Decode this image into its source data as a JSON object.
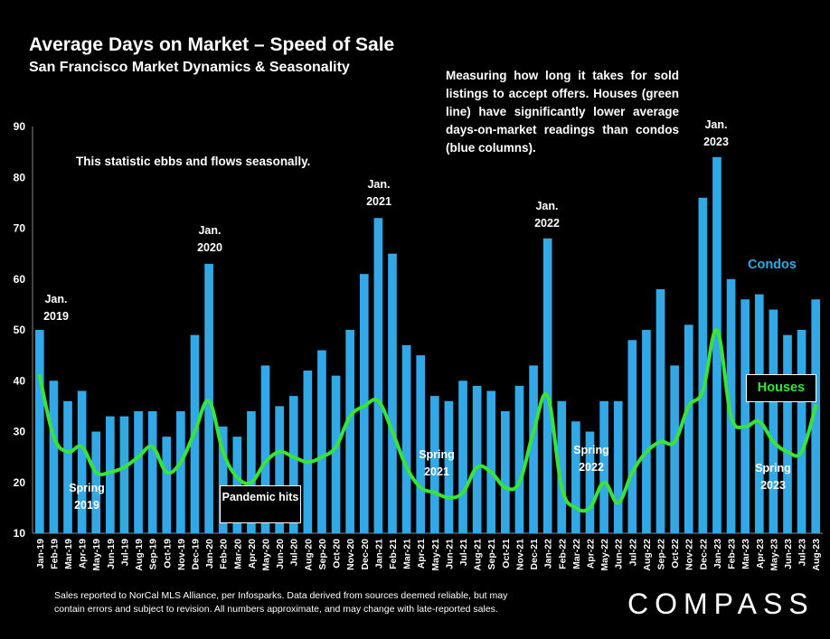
{
  "header": {
    "title": "Average Days on Market – Speed of Sale",
    "subtitle": "San Francisco Market Dynamics & Seasonality"
  },
  "notes": {
    "right": "Measuring how long it takes for sold listings to accept offers. Houses (green line) have significantly lower average days-on-market readings than condos (blue columns).",
    "left": "This statistic ebbs and flows seasonally.",
    "pandemic": "Pandemic hits",
    "footer_line1": "Sales reported to NorCal MLS Alliance, per Infosparks. Data derived from sources deemed reliable, but may",
    "footer_line2": "contain errors and subject to revision. All numbers approximate, and may change with late-reported sales."
  },
  "annotations": {
    "jan2019": "Jan.\n2019",
    "jan2020": "Jan.\n2020",
    "jan2021": "Jan.\n2021",
    "jan2022": "Jan.\n2022",
    "jan2023": "Jan.\n2023",
    "spring2019": "Spring\n2019",
    "spring2021": "Spring\n2021",
    "spring2022": "Spring\n2022",
    "spring2023": "Spring\n2023"
  },
  "legend": {
    "condos": "Condos",
    "houses": "Houses"
  },
  "logo": "COMPASS",
  "colors": {
    "background": "#000000",
    "condos": "#33a8e6",
    "houses": "#39e339",
    "text": "#ffffff"
  },
  "chart_data": {
    "type": "bar",
    "title": "Average Days on Market – Speed of Sale",
    "ylim": [
      10,
      90
    ],
    "yticks": [
      10,
      20,
      30,
      40,
      50,
      60,
      70,
      80,
      90
    ],
    "grid": false,
    "categories": [
      "Jan-19",
      "Feb-19",
      "Mar-19",
      "Apr-19",
      "May-19",
      "Jun-19",
      "Jul-19",
      "Aug-19",
      "Sep-19",
      "Oct-19",
      "Nov-19",
      "Dec-19",
      "Jan-20",
      "Feb-20",
      "Mar-20",
      "Apr-20",
      "May-20",
      "Jun-20",
      "Jul-20",
      "Aug-20",
      "Sep-20",
      "Oct-20",
      "Nov-20",
      "Dec-20",
      "Jan-21",
      "Feb-21",
      "Mar-21",
      "Apr-21",
      "May-21",
      "Jun-21",
      "Jul-21",
      "Aug-21",
      "Sep-21",
      "Oct-21",
      "Nov-21",
      "Dec-21",
      "Jan-22",
      "Feb-22",
      "Mar-22",
      "Apr-22",
      "May-22",
      "Jun-22",
      "Jul-22",
      "Aug-22",
      "Sep-22",
      "Oct-22",
      "Nov-22",
      "Dec-22",
      "Jan-23",
      "Feb-23",
      "Mar-23",
      "Apr-23",
      "May-23",
      "Jun-23",
      "Jul-23",
      "Aug-23"
    ],
    "series": [
      {
        "name": "Condos",
        "kind": "bar",
        "values": [
          50,
          40,
          36,
          38,
          30,
          33,
          33,
          34,
          34,
          29,
          34,
          49,
          63,
          31,
          29,
          34,
          43,
          35,
          37,
          42,
          46,
          41,
          50,
          61,
          72,
          65,
          47,
          45,
          37,
          36,
          40,
          39,
          38,
          34,
          39,
          43,
          68,
          36,
          32,
          30,
          36,
          36,
          48,
          50,
          58,
          43,
          51,
          76,
          84,
          60,
          56,
          57,
          54,
          49,
          50,
          56
        ]
      },
      {
        "name": "Houses",
        "kind": "line",
        "values": [
          41,
          29,
          26,
          27,
          22,
          22,
          23,
          25,
          27,
          22,
          24,
          30,
          36,
          26,
          21,
          20,
          24,
          26,
          25,
          24,
          25,
          27,
          33,
          35,
          36,
          30,
          23,
          19,
          18,
          17,
          18,
          23,
          22,
          19,
          20,
          30,
          37,
          19,
          15,
          15,
          20,
          16,
          22,
          26,
          28,
          28,
          35,
          38,
          50,
          33,
          31,
          32,
          28,
          26,
          26,
          35
        ]
      }
    ]
  }
}
